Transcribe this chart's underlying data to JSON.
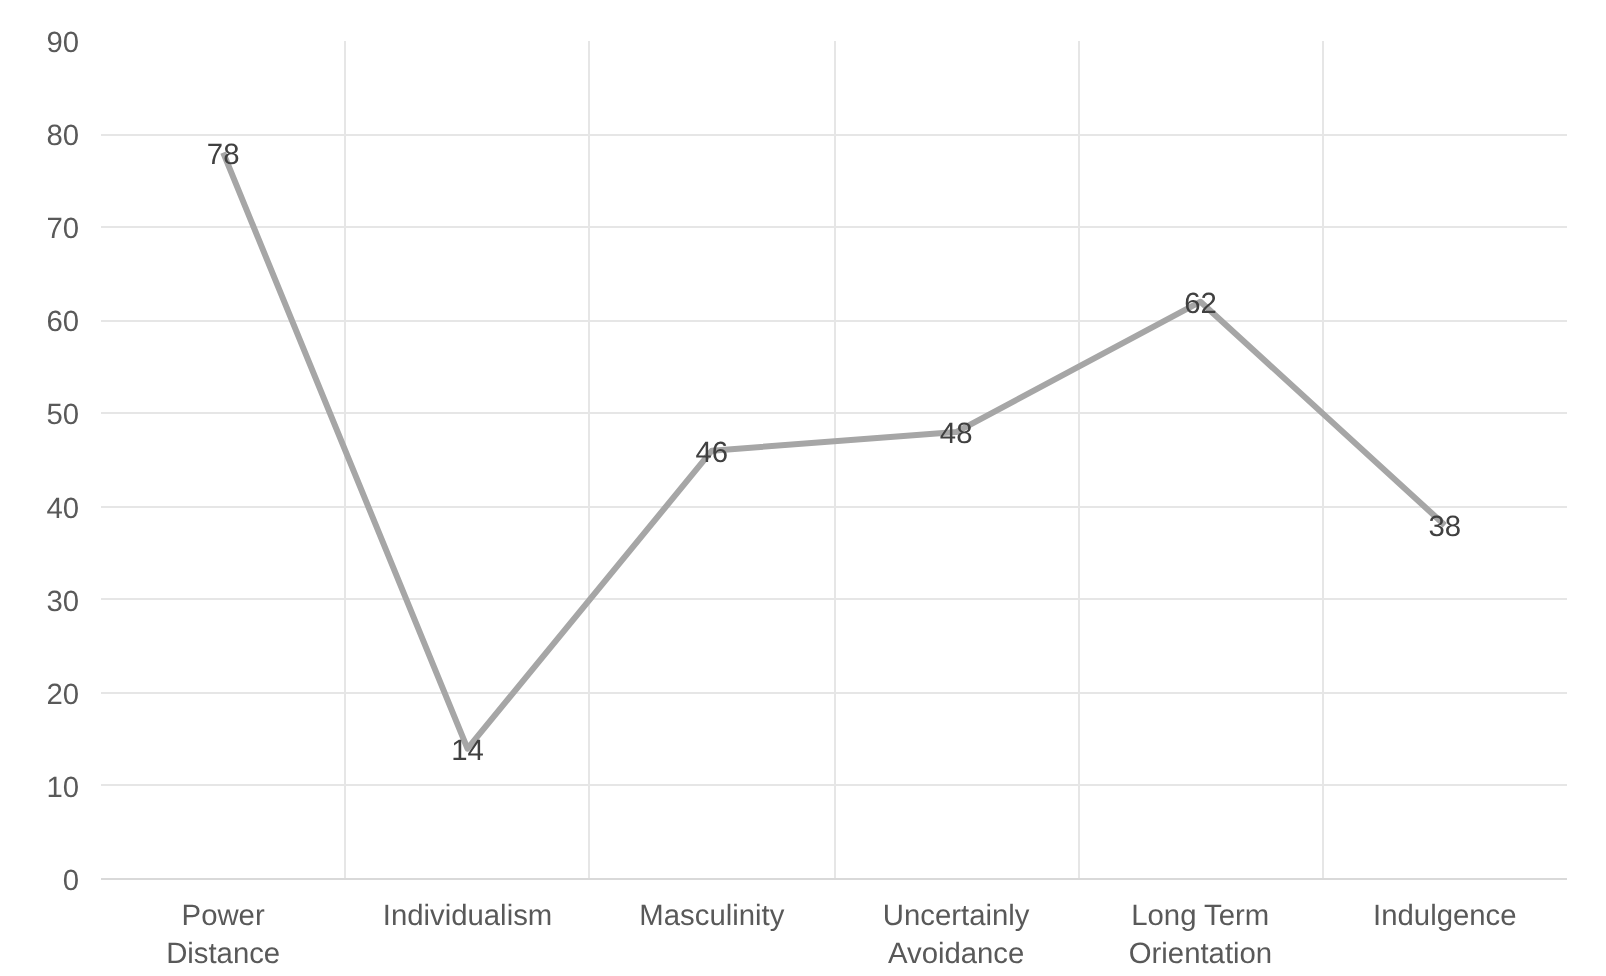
{
  "chart_data": {
    "type": "line",
    "categories": [
      "Power Distance",
      "Individualism",
      "Masculinity",
      "Uncertainly Avoidance",
      "Long Term Orientation",
      "Indulgence"
    ],
    "series": [
      {
        "color": "#a6a6a6",
        "values": [
          78,
          14,
          46,
          48,
          62,
          38
        ]
      }
    ],
    "ylim": [
      0,
      90
    ],
    "yticks": [
      0,
      10,
      20,
      30,
      40,
      50,
      60,
      70,
      80,
      90
    ],
    "grid": true,
    "data_labels": true,
    "line_style": "solid"
  }
}
